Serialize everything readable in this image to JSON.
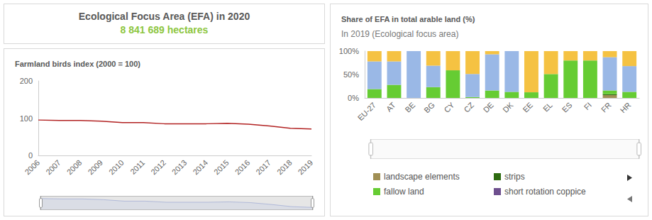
{
  "kpi": {
    "title": "Ecological Focus Area (EFA) in 2020",
    "value": "8 841 689 hectares"
  },
  "chart_data": [
    {
      "type": "line",
      "title": "Farmland birds index (2000 = 100)",
      "categories": [
        "2006",
        "2007",
        "2008",
        "2009",
        "2010",
        "2011",
        "2012",
        "2013",
        "2014",
        "2015",
        "2016",
        "2017",
        "2018",
        "2019"
      ],
      "values": [
        95,
        94,
        94,
        92,
        88,
        88,
        85,
        85,
        85,
        86,
        84,
        79,
        73,
        71
      ],
      "color": "#b22222",
      "ylim": [
        0,
        200
      ],
      "yticks": [
        0,
        100,
        200
      ],
      "grid": false
    },
    {
      "type": "bar",
      "title": "Share of EFA in total arable land (%)",
      "subtitle": "In 2019 (Ecological focus area)",
      "categories": [
        "EU-27",
        "AT",
        "BE",
        "BG",
        "CY",
        "CZ",
        "DE",
        "DK",
        "EE",
        "EL",
        "ES",
        "FI",
        "FR",
        "HR"
      ],
      "stacked": true,
      "legend": "bottom",
      "grid": false,
      "ylim": [
        0,
        100
      ],
      "yticks": [
        {
          "value": 0,
          "label": "0%"
        },
        {
          "value": 50,
          "label": "50%"
        },
        {
          "value": 100,
          "label": "100%"
        }
      ],
      "series": [
        {
          "name": "landscape elements",
          "color": "#a08f55",
          "values": [
            0,
            0,
            0,
            0,
            0,
            0,
            0,
            0,
            0,
            0,
            0,
            0,
            6,
            0
          ]
        },
        {
          "name": "strips",
          "color": "#2e6b10",
          "values": [
            0,
            0,
            0,
            0,
            0,
            0,
            0,
            0,
            0,
            0,
            0,
            0,
            2,
            0
          ]
        },
        {
          "name": "fallow land",
          "color": "#66cc33",
          "values": [
            19,
            28,
            0,
            23,
            59,
            2,
            16,
            13,
            12,
            51,
            80,
            80,
            8,
            13
          ]
        },
        {
          "color": "#9ab8e6",
          "values": [
            59,
            50,
            100,
            46,
            0,
            49,
            77,
            87,
            0,
            0,
            0,
            0,
            71,
            55
          ]
        },
        {
          "color": "#f5c242",
          "values": [
            22,
            22,
            0,
            31,
            41,
            49,
            7,
            0,
            88,
            49,
            20,
            20,
            13,
            32
          ]
        },
        {
          "name": "short rotation coppice",
          "color": "#6e4f8e",
          "values": [
            0,
            0,
            0,
            0,
            0,
            0,
            0,
            0,
            0,
            0,
            0,
            0,
            0,
            0
          ]
        }
      ]
    }
  ]
}
